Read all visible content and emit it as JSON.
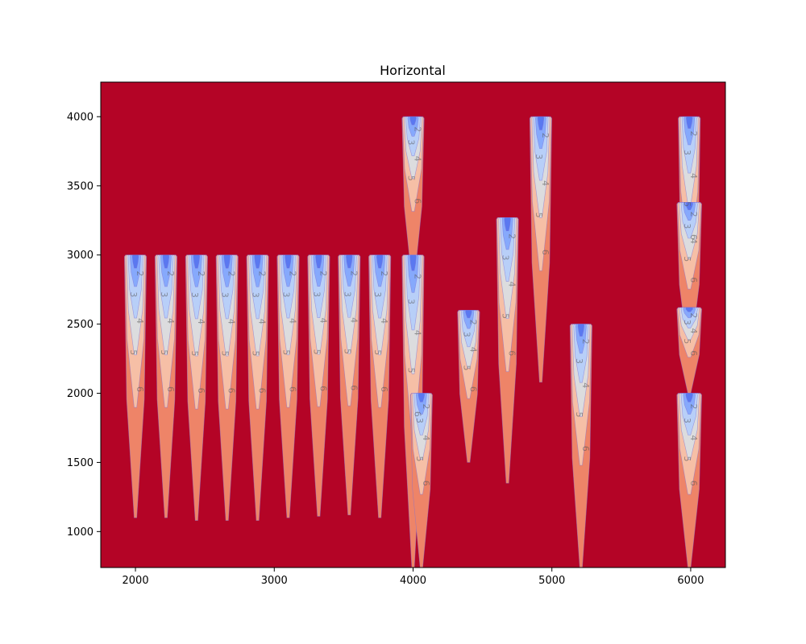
{
  "chart_data": {
    "type": "contour",
    "title": "Horizontal",
    "xlabel": "",
    "ylabel": "",
    "xlim": [
      1750,
      6250
    ],
    "ylim": [
      740,
      4250
    ],
    "xticks": [
      "2000",
      "3000",
      "4000",
      "5000",
      "6000"
    ],
    "yticks": [
      "1000",
      "1500",
      "2000",
      "2500",
      "3000",
      "3500",
      "4000"
    ],
    "background_color": "#b40426",
    "colormap": "coolwarm",
    "contour_levels": [
      "2",
      "3",
      "4",
      "5",
      "6",
      "7"
    ],
    "level_colors": {
      "core": "#5a78f0",
      "2": "#86a9fc",
      "3": "#b8cff8",
      "4": "#dcdcde",
      "5": "#f6bfa6",
      "6": "#ee8468",
      "7": "#b40426"
    },
    "plumes": [
      {
        "x": 2000,
        "top": 3000,
        "bottom": 1100,
        "width": 160
      },
      {
        "x": 2220,
        "top": 3000,
        "bottom": 1100,
        "width": 160
      },
      {
        "x": 2440,
        "top": 3000,
        "bottom": 1080,
        "width": 160
      },
      {
        "x": 2660,
        "top": 3000,
        "bottom": 1080,
        "width": 160
      },
      {
        "x": 2880,
        "top": 3000,
        "bottom": 1080,
        "width": 160
      },
      {
        "x": 3100,
        "top": 3000,
        "bottom": 1100,
        "width": 160
      },
      {
        "x": 3320,
        "top": 3000,
        "bottom": 1110,
        "width": 160
      },
      {
        "x": 3540,
        "top": 3000,
        "bottom": 1120,
        "width": 160
      },
      {
        "x": 3760,
        "top": 3000,
        "bottom": 1100,
        "width": 160
      },
      {
        "x": 4000,
        "top": 4000,
        "bottom": 2820,
        "width": 160
      },
      {
        "x": 4000,
        "top": 3000,
        "bottom": 740,
        "width": 160
      },
      {
        "x": 4060,
        "top": 2000,
        "bottom": 740,
        "width": 160
      },
      {
        "x": 4400,
        "top": 2600,
        "bottom": 1500,
        "width": 160
      },
      {
        "x": 4680,
        "top": 3270,
        "bottom": 1350,
        "width": 160
      },
      {
        "x": 4920,
        "top": 4000,
        "bottom": 2080,
        "width": 160
      },
      {
        "x": 5210,
        "top": 2500,
        "bottom": 740,
        "width": 160
      },
      {
        "x": 5990,
        "top": 4000,
        "bottom": 2300,
        "width": 160
      },
      {
        "x": 5990,
        "top": 3380,
        "bottom": 2300,
        "width": 180
      },
      {
        "x": 5990,
        "top": 2620,
        "bottom": 2000,
        "width": 180
      },
      {
        "x": 5990,
        "top": 2000,
        "bottom": 740,
        "width": 180
      }
    ]
  }
}
